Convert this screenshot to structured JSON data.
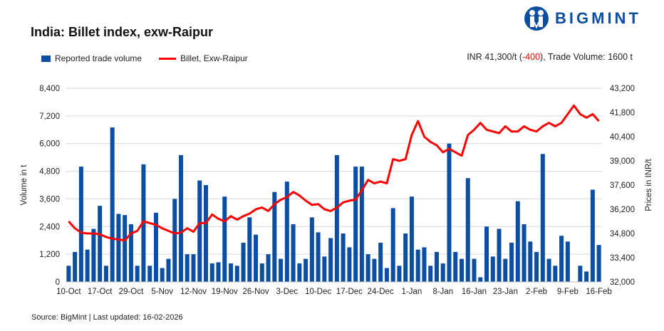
{
  "header": {
    "title": "India: Billet index, exw-Raipur",
    "summary_prefix": "INR 41,300/t (",
    "summary_change": "-400",
    "summary_suffix": "), Trade Volume: 1600 t",
    "logo_text": "BIGMINT"
  },
  "footer": {
    "source": "Source: BigMint | Last updated: 16-02-2026"
  },
  "colors": {
    "bars": "#0b4ea2",
    "line": "#ff0000",
    "change_negative": "#ff0000"
  },
  "chart_data": {
    "type": "bar+line",
    "title": "India: Billet index, exw-Raipur",
    "legend": {
      "placement": "top-left",
      "entries": [
        "Reported trade volume",
        "Billet, Exw-Raipur"
      ]
    },
    "grid": true,
    "x_tick_labels": [
      "10-Oct",
      "17-Oct",
      "29-Oct",
      "5-Nov",
      "12-Nov",
      "19-Nov",
      "26-Nov",
      "3-Dec",
      "10-Dec",
      "17-Dec",
      "24-Dec",
      "1-Jan",
      "8-Jan",
      "16-Jan",
      "23-Jan",
      "2-Feb",
      "9-Feb",
      "16-Feb"
    ],
    "y_left": {
      "label": "Volume in t",
      "lim": [
        0,
        8400
      ],
      "ticks": [
        "0",
        "1,200",
        "2,400",
        "3,600",
        "4,800",
        "6,000",
        "7,200",
        "8,400"
      ]
    },
    "y_right": {
      "label": "Prices in INR/t",
      "lim": [
        32000,
        43200
      ],
      "ticks": [
        "32,000",
        "33,400",
        "34,800",
        "36,200",
        "37,600",
        "39,000",
        "40,400",
        "41,800",
        "43,200"
      ]
    },
    "series": [
      {
        "name": "Reported trade volume",
        "type": "bar",
        "axis": "left",
        "values": [
          700,
          1300,
          5000,
          1400,
          2300,
          3300,
          700,
          6700,
          2950,
          2900,
          2500,
          700,
          5100,
          700,
          3000,
          600,
          1000,
          3600,
          5500,
          1200,
          1200,
          4400,
          4200,
          800,
          850,
          3700,
          800,
          700,
          1700,
          2800,
          2050,
          800,
          1200,
          3900,
          1000,
          4350,
          2500,
          800,
          1000,
          2800,
          2150,
          1100,
          1900,
          5500,
          2100,
          1500,
          5000,
          5000,
          1200,
          1000,
          1700,
          600,
          3200,
          700,
          2100,
          3700,
          1400,
          1500,
          700,
          1300,
          800,
          6000,
          1300,
          1000,
          4500,
          1000,
          200,
          2400,
          1100,
          2300,
          1000,
          1700,
          3500,
          2500,
          1750,
          1300,
          5550,
          1000,
          700,
          2000,
          1750,
          0,
          700,
          450,
          4000,
          1600
        ]
      },
      {
        "name": "Billet, Exw-Raipur",
        "type": "line",
        "axis": "right",
        "values": [
          35500,
          35100,
          34850,
          34800,
          34800,
          34750,
          34600,
          34500,
          34450,
          34400,
          34800,
          34950,
          35500,
          35400,
          35300,
          35100,
          34950,
          34800,
          34850,
          35100,
          34900,
          35400,
          35400,
          35900,
          35650,
          35500,
          35800,
          35600,
          35800,
          35950,
          36200,
          36300,
          36100,
          36500,
          36750,
          36900,
          37200,
          37000,
          36700,
          36450,
          36500,
          36200,
          36100,
          36300,
          36600,
          36700,
          36750,
          37300,
          37900,
          37700,
          37800,
          37700,
          39100,
          39000,
          39100,
          40500,
          41300,
          40400,
          40100,
          39900,
          39500,
          39700,
          39500,
          39300,
          40500,
          40800,
          41200,
          40800,
          40700,
          40600,
          41000,
          40700,
          40700,
          41000,
          40800,
          40700,
          41000,
          41200,
          41000,
          41200,
          41700,
          42200,
          41700,
          41500,
          41700,
          41300
        ]
      }
    ]
  }
}
